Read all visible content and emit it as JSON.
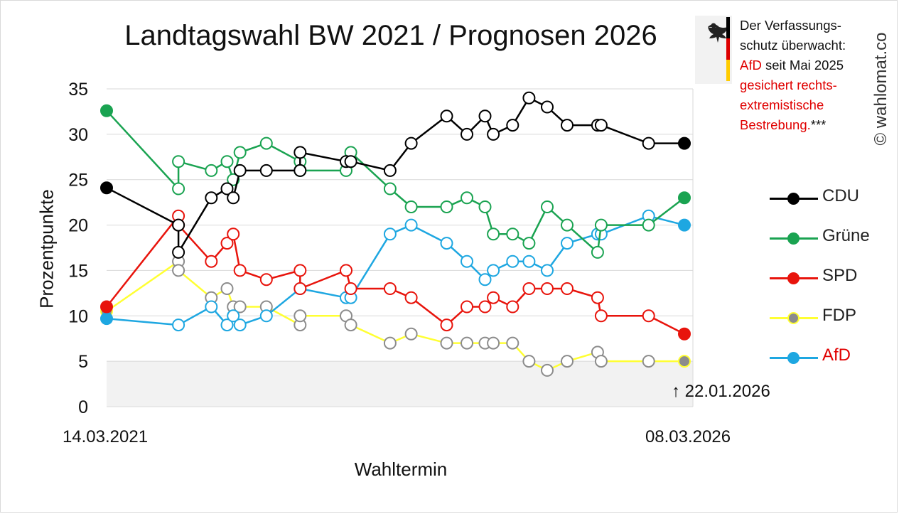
{
  "title": "Landtagswahl BW 2021 / Prognosen 2026",
  "note": {
    "line1": "Der Verfassungs-",
    "line2": "schutz überwacht:",
    "afd": "AfD",
    "line3_rest": " seit Mai 2025",
    "line4": "gesichert rechts-",
    "line5": "extremistische",
    "line6": "Bestrebung.",
    "stars": "***"
  },
  "copyright": "© wahlomat.co",
  "annotation": "↑ 22.01.2026",
  "colors": {
    "CDU": "#000000",
    "Grüne": "#1aa351",
    "SPD": "#e8140c",
    "FDP": "#ffff33",
    "AfD": "#1ea7e1",
    "FDP_marker": "#8c8c8c",
    "background_band": "#f2f2f2",
    "grid": "#d9d9d9"
  },
  "chart_data": {
    "type": "line",
    "title": "Landtagswahl BW 2021 / Prognosen 2026",
    "xlabel": "Wahltermin",
    "ylabel": "Prozentpunkte",
    "ylim": [
      0,
      35
    ],
    "yticks": [
      0,
      5,
      10,
      15,
      20,
      25,
      30,
      35
    ],
    "x_start_label": "14.03.2021",
    "x_end_label": "08.03.2026",
    "x_range": [
      0,
      1
    ],
    "legend_position": "right",
    "grid": true,
    "series": [
      {
        "name": "CDU",
        "points": [
          [
            0,
            24.1
          ],
          [
            0.1225,
            20
          ],
          [
            0.1225,
            17
          ],
          [
            0.1785,
            23
          ],
          [
            0.2055,
            24
          ],
          [
            0.216,
            23
          ],
          [
            0.2275,
            26
          ],
          [
            0.2725,
            26
          ],
          [
            0.33,
            26
          ],
          [
            0.33,
            28
          ],
          [
            0.4085,
            27
          ],
          [
            0.4165,
            27
          ],
          [
            0.4835,
            26
          ],
          [
            0.5195,
            29
          ],
          [
            0.58,
            32
          ],
          [
            0.6145,
            30
          ],
          [
            0.6455,
            32
          ],
          [
            0.6595,
            30
          ],
          [
            0.6925,
            31
          ],
          [
            0.7205,
            34
          ],
          [
            0.7515,
            33
          ],
          [
            0.7855,
            31
          ],
          [
            0.8375,
            31
          ],
          [
            0.8435,
            31
          ],
          [
            0.9245,
            29
          ],
          [
            0.9855,
            29
          ]
        ]
      },
      {
        "name": "Grüne",
        "points": [
          [
            0,
            32.6
          ],
          [
            0.1225,
            24
          ],
          [
            0.1225,
            27
          ],
          [
            0.1785,
            26
          ],
          [
            0.2055,
            27
          ],
          [
            0.216,
            25
          ],
          [
            0.2275,
            28
          ],
          [
            0.2725,
            29
          ],
          [
            0.33,
            27
          ],
          [
            0.33,
            26
          ],
          [
            0.4085,
            26
          ],
          [
            0.4165,
            28
          ],
          [
            0.4835,
            24
          ],
          [
            0.5195,
            22
          ],
          [
            0.58,
            22
          ],
          [
            0.6145,
            23
          ],
          [
            0.6455,
            22
          ],
          [
            0.6595,
            19
          ],
          [
            0.6925,
            19
          ],
          [
            0.7205,
            18
          ],
          [
            0.7515,
            22
          ],
          [
            0.7855,
            20
          ],
          [
            0.8375,
            17
          ],
          [
            0.8435,
            20
          ],
          [
            0.9245,
            20
          ],
          [
            0.9855,
            23
          ]
        ]
      },
      {
        "name": "SPD",
        "points": [
          [
            0,
            11
          ],
          [
            0.1225,
            21
          ],
          [
            0.1225,
            20
          ],
          [
            0.1785,
            16
          ],
          [
            0.2055,
            18
          ],
          [
            0.216,
            19
          ],
          [
            0.2275,
            15
          ],
          [
            0.2725,
            14
          ],
          [
            0.33,
            15
          ],
          [
            0.33,
            13
          ],
          [
            0.4085,
            15
          ],
          [
            0.4165,
            13
          ],
          [
            0.4835,
            13
          ],
          [
            0.5195,
            12
          ],
          [
            0.58,
            9
          ],
          [
            0.6145,
            11
          ],
          [
            0.6455,
            11
          ],
          [
            0.6595,
            12
          ],
          [
            0.6925,
            11
          ],
          [
            0.7205,
            13
          ],
          [
            0.7515,
            13
          ],
          [
            0.7855,
            13
          ],
          [
            0.8375,
            12
          ],
          [
            0.8435,
            10
          ],
          [
            0.9245,
            10
          ],
          [
            0.9855,
            8
          ]
        ]
      },
      {
        "name": "FDP",
        "points": [
          [
            0,
            10.5
          ],
          [
            0.1225,
            16
          ],
          [
            0.1225,
            15
          ],
          [
            0.1785,
            12
          ],
          [
            0.2055,
            13
          ],
          [
            0.216,
            11
          ],
          [
            0.2275,
            11
          ],
          [
            0.2725,
            11
          ],
          [
            0.33,
            9
          ],
          [
            0.33,
            10
          ],
          [
            0.4085,
            10
          ],
          [
            0.4165,
            9
          ],
          [
            0.4835,
            7
          ],
          [
            0.5195,
            8
          ],
          [
            0.58,
            7
          ],
          [
            0.6145,
            7
          ],
          [
            0.6455,
            7
          ],
          [
            0.6595,
            7
          ],
          [
            0.6925,
            7
          ],
          [
            0.7205,
            5
          ],
          [
            0.7515,
            4
          ],
          [
            0.7855,
            5
          ],
          [
            0.8375,
            6
          ],
          [
            0.8435,
            5
          ],
          [
            0.9245,
            5
          ],
          [
            0.9855,
            5
          ]
        ]
      },
      {
        "name": "AfD",
        "points": [
          [
            0,
            9.7
          ],
          [
            0.1225,
            9
          ],
          [
            0.1785,
            11
          ],
          [
            0.2055,
            9
          ],
          [
            0.216,
            10
          ],
          [
            0.2275,
            9
          ],
          [
            0.2725,
            10
          ],
          [
            0.33,
            13
          ],
          [
            0.4085,
            12
          ],
          [
            0.4165,
            12
          ],
          [
            0.4835,
            19
          ],
          [
            0.5195,
            20
          ],
          [
            0.58,
            18
          ],
          [
            0.6145,
            16
          ],
          [
            0.6455,
            14
          ],
          [
            0.6595,
            15
          ],
          [
            0.6925,
            16
          ],
          [
            0.7205,
            16
          ],
          [
            0.7515,
            15
          ],
          [
            0.7855,
            18
          ],
          [
            0.8375,
            19
          ],
          [
            0.8435,
            19
          ],
          [
            0.9245,
            21
          ],
          [
            0.9855,
            20
          ]
        ]
      }
    ]
  }
}
